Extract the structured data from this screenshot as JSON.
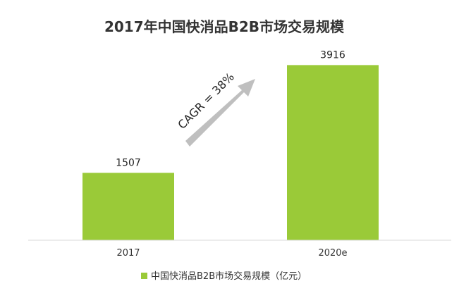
{
  "chart_data": {
    "type": "bar",
    "title": "2017年中国快消品B2B市场交易规模",
    "categories": [
      "2017",
      "2020e"
    ],
    "series": [
      {
        "name": "中国快消品B2B市场交易规模（亿元）",
        "values": [
          1507,
          3916
        ]
      }
    ],
    "ylim": [
      0,
      4300
    ],
    "grid": false,
    "legend_position": "bottom",
    "bar_color": "#9ACA38",
    "annotation": {
      "text": "CAGR = 38%",
      "arrow_color": "#BFBFBF"
    }
  }
}
